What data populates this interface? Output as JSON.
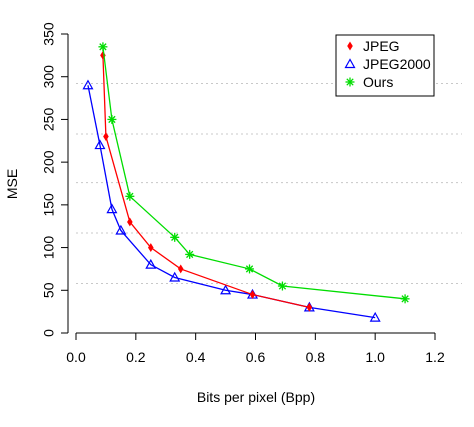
{
  "chart_data": {
    "type": "line",
    "xlabel": "Bits per pixel (Bpp)",
    "ylabel": "MSE",
    "xlim": [
      0.0,
      1.2
    ],
    "ylim": [
      0,
      350
    ],
    "x_ticks": [
      "0.0",
      "0.2",
      "0.4",
      "0.6",
      "0.8",
      "1.0",
      "1.2"
    ],
    "y_ticks": [
      "0",
      "50",
      "100",
      "150",
      "200",
      "250",
      "300",
      "350"
    ],
    "grid": {
      "horizontal_dotted": [
        58,
        117,
        176,
        233,
        292
      ]
    },
    "legend_position": "top-right",
    "series": [
      {
        "name": "JPEG",
        "color": "#ff0000",
        "marker": "diamond",
        "points": [
          [
            0.09,
            325
          ],
          [
            0.1,
            230
          ],
          [
            0.18,
            130
          ],
          [
            0.25,
            100
          ],
          [
            0.35,
            75
          ],
          [
            0.59,
            45
          ],
          [
            0.78,
            30
          ]
        ]
      },
      {
        "name": "JPEG2000",
        "color": "#0000ff",
        "marker": "triangle",
        "points": [
          [
            0.04,
            290
          ],
          [
            0.08,
            220
          ],
          [
            0.12,
            145
          ],
          [
            0.15,
            120
          ],
          [
            0.25,
            80
          ],
          [
            0.33,
            65
          ],
          [
            0.5,
            50
          ],
          [
            0.59,
            45
          ],
          [
            0.78,
            30
          ],
          [
            1.0,
            18
          ]
        ]
      },
      {
        "name": "Ours",
        "color": "#00dd00",
        "marker": "star",
        "points": [
          [
            0.09,
            335
          ],
          [
            0.12,
            250
          ],
          [
            0.18,
            160
          ],
          [
            0.33,
            112
          ],
          [
            0.38,
            92
          ],
          [
            0.58,
            75
          ],
          [
            0.69,
            55
          ],
          [
            1.1,
            40
          ]
        ]
      }
    ]
  }
}
